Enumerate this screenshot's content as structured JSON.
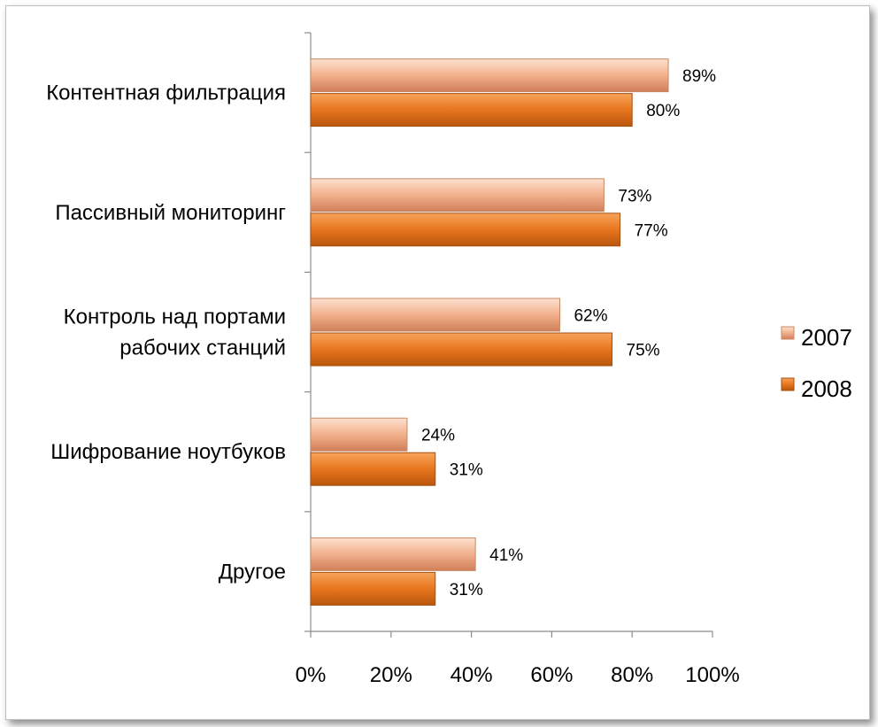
{
  "chart_data": {
    "type": "bar",
    "orientation": "horizontal",
    "categories": [
      [
        "Контентная фильтрация"
      ],
      [
        "Пассивный мониторинг"
      ],
      [
        "Контроль над портами",
        "рабочих станций"
      ],
      [
        "Шифрование ноутбуков"
      ],
      [
        "Другое"
      ]
    ],
    "series": [
      {
        "name": "2007",
        "values": [
          89,
          73,
          62,
          24,
          41
        ],
        "labels": [
          "89%",
          "73%",
          "62%",
          "24%",
          "41%"
        ],
        "color": "#f2b08c"
      },
      {
        "name": "2008",
        "values": [
          80,
          77,
          75,
          31,
          31
        ],
        "labels": [
          "80%",
          "77%",
          "75%",
          "31%",
          "31%"
        ],
        "color": "#e8761e"
      }
    ],
    "xlim": [
      0,
      100
    ],
    "x_ticks": [
      "0%",
      "20%",
      "40%",
      "60%",
      "80%",
      "100%"
    ],
    "legend_position": "right",
    "grid": false,
    "title": "",
    "xlabel": "",
    "ylabel": ""
  }
}
